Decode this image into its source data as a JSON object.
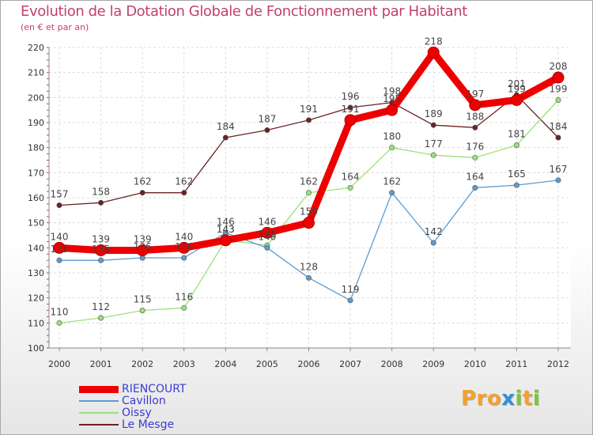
{
  "chart_data": {
    "type": "line",
    "title": "Evolution de la Dotation Globale de Fonctionnement par Habitant",
    "subtitle": "(en € et par an)",
    "categories": [
      "2000",
      "2001",
      "2002",
      "2003",
      "2004",
      "2005",
      "2006",
      "2007",
      "2008",
      "2009",
      "2010",
      "2011",
      "2012"
    ],
    "ylim": [
      100,
      220
    ],
    "yticks": [
      100,
      110,
      120,
      130,
      140,
      150,
      160,
      170,
      180,
      190,
      200,
      210,
      220
    ],
    "grid": true,
    "legend_position": "bottom-left",
    "series": [
      {
        "name": "Le Mesge",
        "color": "#6b2326",
        "values": [
          157,
          158,
          162,
          162,
          184,
          187,
          191,
          196,
          198,
          189,
          188,
          201,
          184
        ]
      },
      {
        "name": "Oissy",
        "color": "#9be07a",
        "values": [
          110,
          112,
          115,
          116,
          143,
          141,
          162,
          164,
          180,
          177,
          176,
          181,
          199
        ]
      },
      {
        "name": "Cavillon",
        "color": "#5b9bd0",
        "values": [
          135,
          135,
          136,
          136,
          146,
          140,
          128,
          119,
          162,
          142,
          164,
          165,
          167
        ]
      },
      {
        "name": "RIENCOURT",
        "color": "#ee0000",
        "values": [
          140,
          139,
          139,
          140,
          143,
          146,
          150,
          191,
          195,
          218,
          197,
          199,
          208
        ]
      }
    ]
  },
  "legend": [
    {
      "name": "RIENCOURT",
      "color": "#ee0000"
    },
    {
      "name": "Cavillon",
      "color": "#5b9bd0"
    },
    {
      "name": "Oissy",
      "color": "#9be07a"
    },
    {
      "name": "Le Mesge",
      "color": "#6b2326"
    }
  ],
  "logo": {
    "part1": "Pro",
    "part2": "x",
    "part3": "i",
    "part4": "t",
    "part5": "i"
  }
}
